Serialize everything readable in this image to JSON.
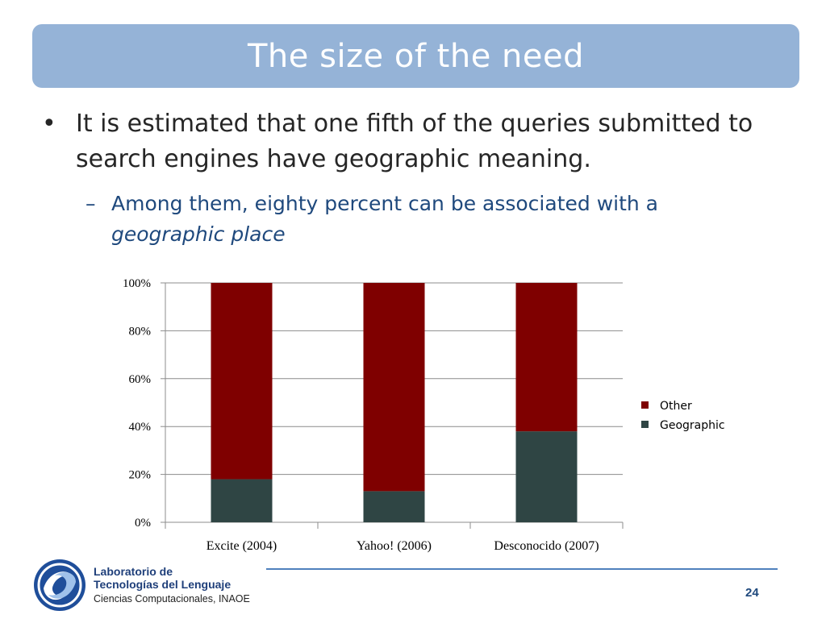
{
  "slide": {
    "title": "The size of the need",
    "bullet_marker": "•",
    "bullet_text": "It is estimated that one fifth of the queries submitted to search engines have geographic meaning.",
    "sub_marker": "–",
    "sub_text": "Among them, eighty percent can be associated with a",
    "sub_text_emphasis": "geographic place",
    "page_number": "24"
  },
  "footer": {
    "lab_line1": "Laboratorio de",
    "lab_line2": "Tecnologías del Lenguaje",
    "lab_line3": "Ciencias Computacionales, INAOE"
  },
  "chart_data": {
    "type": "bar",
    "stacked": true,
    "categories": [
      "Excite (2004)",
      "Yahoo! (2006)",
      "Desconocido (2007)"
    ],
    "series": [
      {
        "name": "Geographic",
        "color": "#2f4544",
        "values": [
          18,
          13,
          38
        ]
      },
      {
        "name": "Other",
        "color": "#7f0000",
        "values": [
          82,
          87,
          62
        ]
      }
    ],
    "yticks": [
      "0%",
      "20%",
      "40%",
      "60%",
      "80%",
      "100%"
    ],
    "ylim": [
      0,
      100
    ],
    "grid": true,
    "legend_position": "right"
  }
}
